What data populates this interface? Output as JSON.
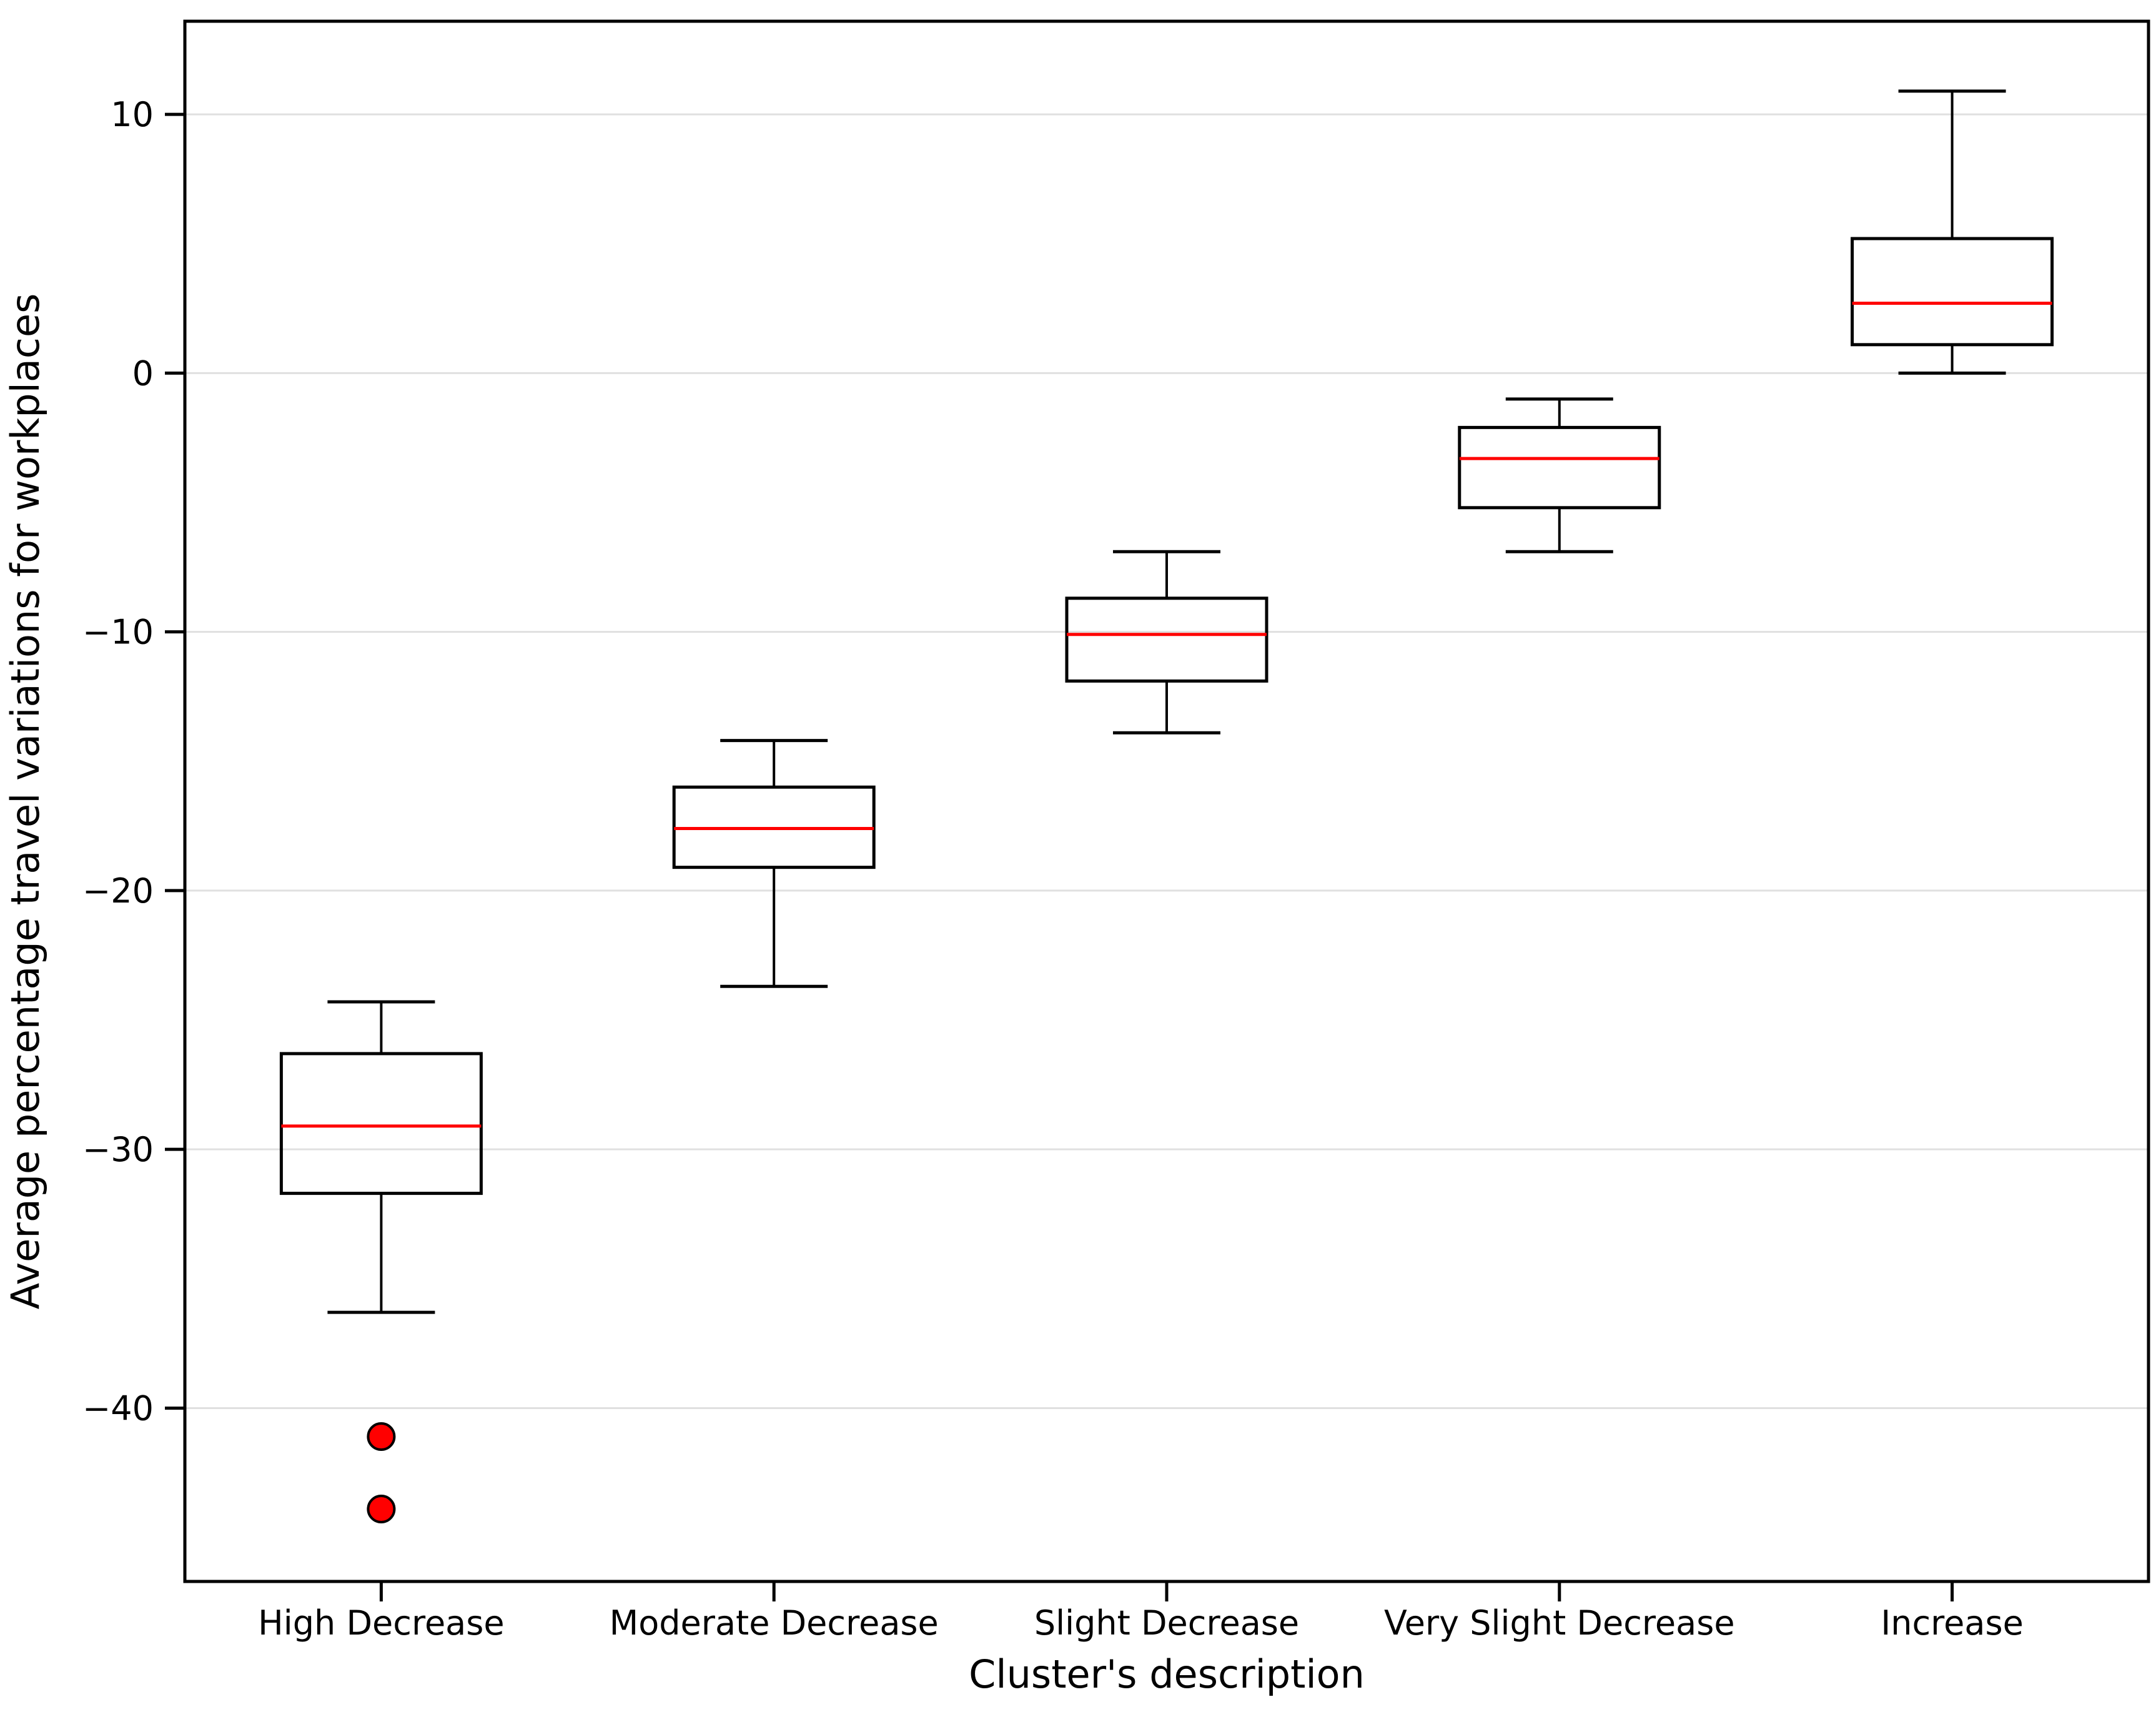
{
  "chart_data": {
    "type": "boxplot",
    "title": "",
    "xlabel": "Cluster's description",
    "ylabel": "Average percentage travel variations for workplaces",
    "categories": [
      "High Decrease",
      "Moderate Decrease",
      "Slight Decrease",
      "Very Slight Decrease",
      "Increase"
    ],
    "yticks": [
      10,
      0,
      -10,
      -20,
      -30,
      -40
    ],
    "ylim": [
      -46.7,
      13.6
    ],
    "grid": "horizontal gridlines at yticks, light gray, drawn behind boxes",
    "legend": "none",
    "boxes": [
      {
        "category": "High Decrease",
        "whisker_low": -36.3,
        "q1": -31.7,
        "median": -29.1,
        "q3": -26.3,
        "whisker_high": -24.3,
        "outliers": [
          -41.1,
          -43.9
        ]
      },
      {
        "category": "Moderate Decrease",
        "whisker_low": -23.7,
        "q1": -19.1,
        "median": -17.6,
        "q3": -16.0,
        "whisker_high": -14.2,
        "outliers": []
      },
      {
        "category": "Slight Decrease",
        "whisker_low": -13.9,
        "q1": -11.9,
        "median": -10.1,
        "q3": -8.7,
        "whisker_high": -6.9,
        "outliers": []
      },
      {
        "category": "Very Slight Decrease",
        "whisker_low": -6.9,
        "q1": -5.2,
        "median": -3.3,
        "q3": -2.1,
        "whisker_high": -1.0,
        "outliers": []
      },
      {
        "category": "Increase",
        "whisker_low": 0.0,
        "q1": 1.1,
        "median": 2.7,
        "q3": 5.2,
        "whisker_high": 10.9,
        "outliers": []
      }
    ],
    "style": {
      "background": "#ffffff",
      "box_edge_color": "#000000",
      "median_color": "#ff0000",
      "outlier_fill": "#ff0000",
      "outlier_edge": "#000000",
      "grid_color": "#e0e0e0",
      "axis_color": "#000000",
      "text_color": "#000000"
    }
  }
}
